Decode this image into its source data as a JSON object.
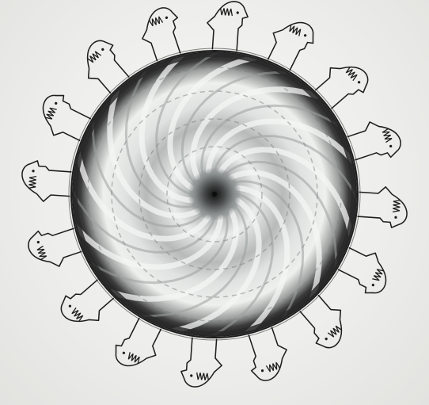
{
  "image": {
    "subject": "spiral-disc-with-surrounding-figures",
    "colors": {
      "paper": "#efefed",
      "ink": "#1e1e1e",
      "ring": "#2b2b2b",
      "center": "#3a3a3a"
    },
    "figure_count": 16,
    "spiral_arms": 24
  }
}
